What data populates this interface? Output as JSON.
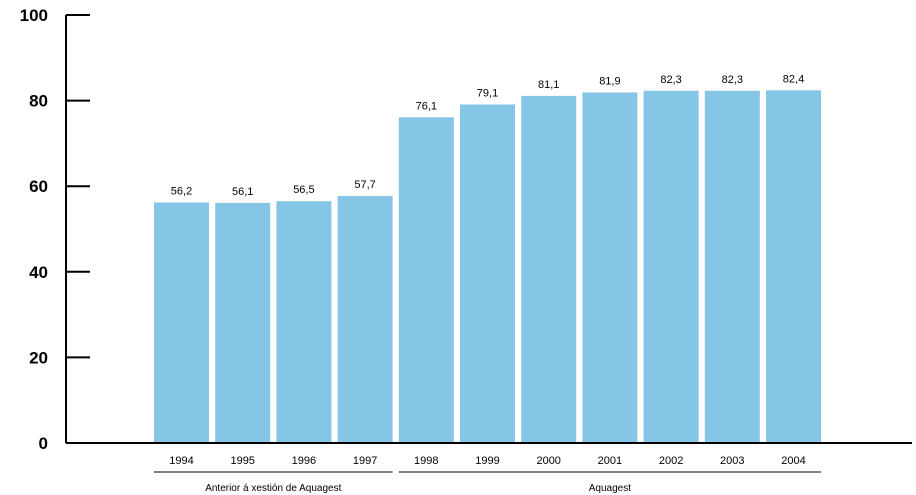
{
  "chart_data": {
    "type": "bar",
    "categories": [
      "1994",
      "1995",
      "1996",
      "1997",
      "1998",
      "1999",
      "2000",
      "2001",
      "2002",
      "2003",
      "2004"
    ],
    "values": [
      56.2,
      56.1,
      56.5,
      57.7,
      76.1,
      79.1,
      81.1,
      81.9,
      82.3,
      82.3,
      82.4
    ],
    "value_labels": [
      "56,2",
      "56,1",
      "56,5",
      "57,7",
      "76,1",
      "79,1",
      "81,1",
      "81,9",
      "82,3",
      "82,3",
      "82,4"
    ],
    "yticks": [
      "0",
      "20",
      "40",
      "60",
      "80",
      "100"
    ],
    "ylim": [
      0,
      100
    ],
    "bar_color": "#85c5e5",
    "grid": false,
    "groups": [
      {
        "label": "Anterior á xestión de Aquagest",
        "categories": [
          "1994",
          "1995",
          "1996",
          "1997"
        ]
      },
      {
        "label": "Aquagest",
        "categories": [
          "1998",
          "1999",
          "2000",
          "2001",
          "2002",
          "2003",
          "2004"
        ]
      }
    ]
  }
}
